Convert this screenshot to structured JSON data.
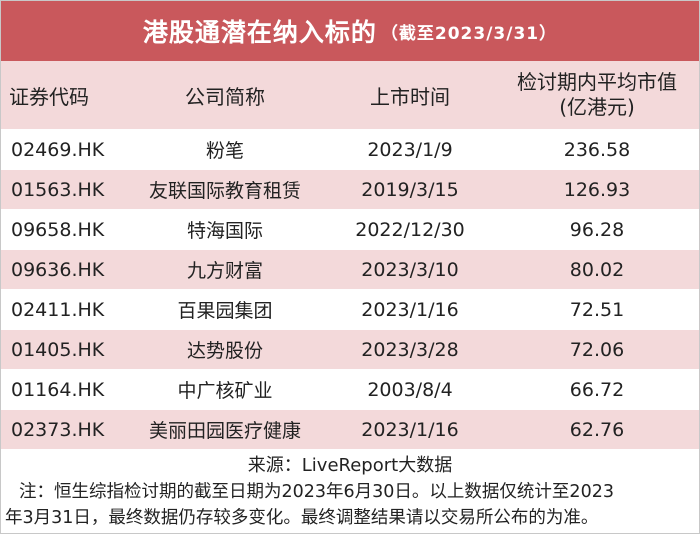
{
  "title": {
    "main": "港股通潜在纳入标的",
    "sub": "（截至2023/3/31）"
  },
  "columns": [
    "证券代码",
    "公司简称",
    "上市时间",
    "检讨期内平均市值",
    "(亿港元)"
  ],
  "rows": [
    {
      "code": "02469.HK",
      "name": "粉笔",
      "date": "2023/1/9",
      "cap": "236.58"
    },
    {
      "code": "01563.HK",
      "name": "友联国际教育租赁",
      "date": "2019/3/15",
      "cap": "126.93"
    },
    {
      "code": "09658.HK",
      "name": "特海国际",
      "date": "2022/12/30",
      "cap": "96.28"
    },
    {
      "code": "09636.HK",
      "name": "九方财富",
      "date": "2023/3/10",
      "cap": "80.02"
    },
    {
      "code": "02411.HK",
      "name": "百果园集团",
      "date": "2023/1/16",
      "cap": "72.51"
    },
    {
      "code": "01405.HK",
      "name": "达势股份",
      "date": "2023/3/28",
      "cap": "72.06"
    },
    {
      "code": "01164.HK",
      "name": "中广核矿业",
      "date": "2003/8/4",
      "cap": "66.72"
    },
    {
      "code": "02373.HK",
      "name": "美丽田园医疗健康",
      "date": "2023/1/16",
      "cap": "62.76"
    }
  ],
  "source": "来源：LiveReport大数据",
  "note_line1": "注：恒生综指检讨期的截至日期为2023年6月30日。以上数据仅统计至2023",
  "note_line2": "年3月31日，最终数据仍存较多变化。最终调整结果请以交易所公布的为准。",
  "colors": {
    "title_bg": "#c9585c",
    "band": "#f3d9da"
  }
}
